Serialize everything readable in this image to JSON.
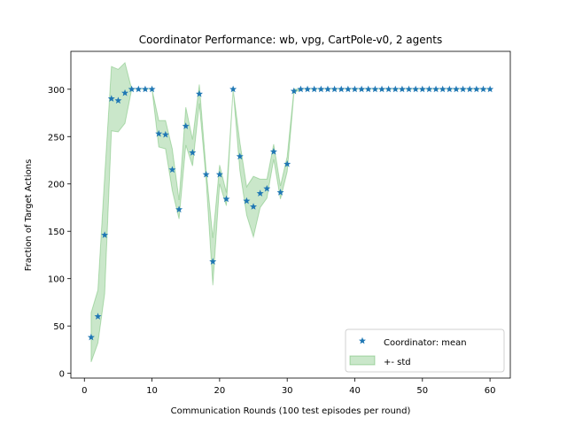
{
  "chart_data": {
    "type": "line",
    "title": "Coordinator Performance: wb, vpg, CartPole-v0, 2 agents",
    "xlabel": "Communication Rounds (100 test episodes per round)",
    "ylabel": "Fraction of Target Actions",
    "xlim": [
      -2,
      63
    ],
    "ylim": [
      -5,
      340
    ],
    "xticks": [
      0,
      10,
      20,
      30,
      40,
      50,
      60
    ],
    "yticks": [
      0,
      50,
      100,
      150,
      200,
      250,
      300
    ],
    "grid": false,
    "legend_position": "lower-right",
    "legend": [
      "Coordinator: mean",
      "+- std"
    ],
    "colors": {
      "mean": "#1f77b4",
      "std_fill": "#2ca02c"
    },
    "x": [
      1,
      2,
      3,
      4,
      5,
      6,
      7,
      8,
      9,
      10,
      11,
      12,
      13,
      14,
      15,
      16,
      17,
      18,
      19,
      20,
      21,
      22,
      23,
      24,
      25,
      26,
      27,
      28,
      29,
      30,
      31,
      32,
      33,
      34,
      35,
      36,
      37,
      38,
      39,
      40,
      41,
      42,
      43,
      44,
      45,
      46,
      47,
      48,
      49,
      50,
      51,
      52,
      53,
      54,
      55,
      56,
      57,
      58,
      59,
      60
    ],
    "mean": [
      38,
      60,
      146,
      290,
      288,
      296,
      300,
      300,
      300,
      300,
      253,
      252,
      215,
      173,
      261,
      233,
      295,
      210,
      118,
      210,
      184,
      300,
      229,
      182,
      176,
      190,
      195,
      234,
      191,
      221,
      298,
      300,
      300,
      300,
      300,
      300,
      300,
      300,
      300,
      300,
      300,
      300,
      300,
      300,
      300,
      300,
      300,
      300,
      300,
      300,
      300,
      300,
      300,
      300,
      300,
      300,
      300,
      300,
      300,
      300
    ],
    "std": [
      26,
      28,
      62,
      34,
      33,
      32,
      0,
      0,
      0,
      0,
      14,
      15,
      22,
      10,
      20,
      14,
      10,
      5,
      25,
      10,
      7,
      0,
      15,
      15,
      32,
      15,
      10,
      8,
      7,
      8,
      2,
      0,
      0,
      0,
      0,
      0,
      0,
      0,
      0,
      0,
      0,
      0,
      0,
      0,
      0,
      0,
      0,
      0,
      0,
      0,
      0,
      0,
      0,
      0,
      0,
      0,
      0,
      0,
      0,
      0
    ]
  }
}
